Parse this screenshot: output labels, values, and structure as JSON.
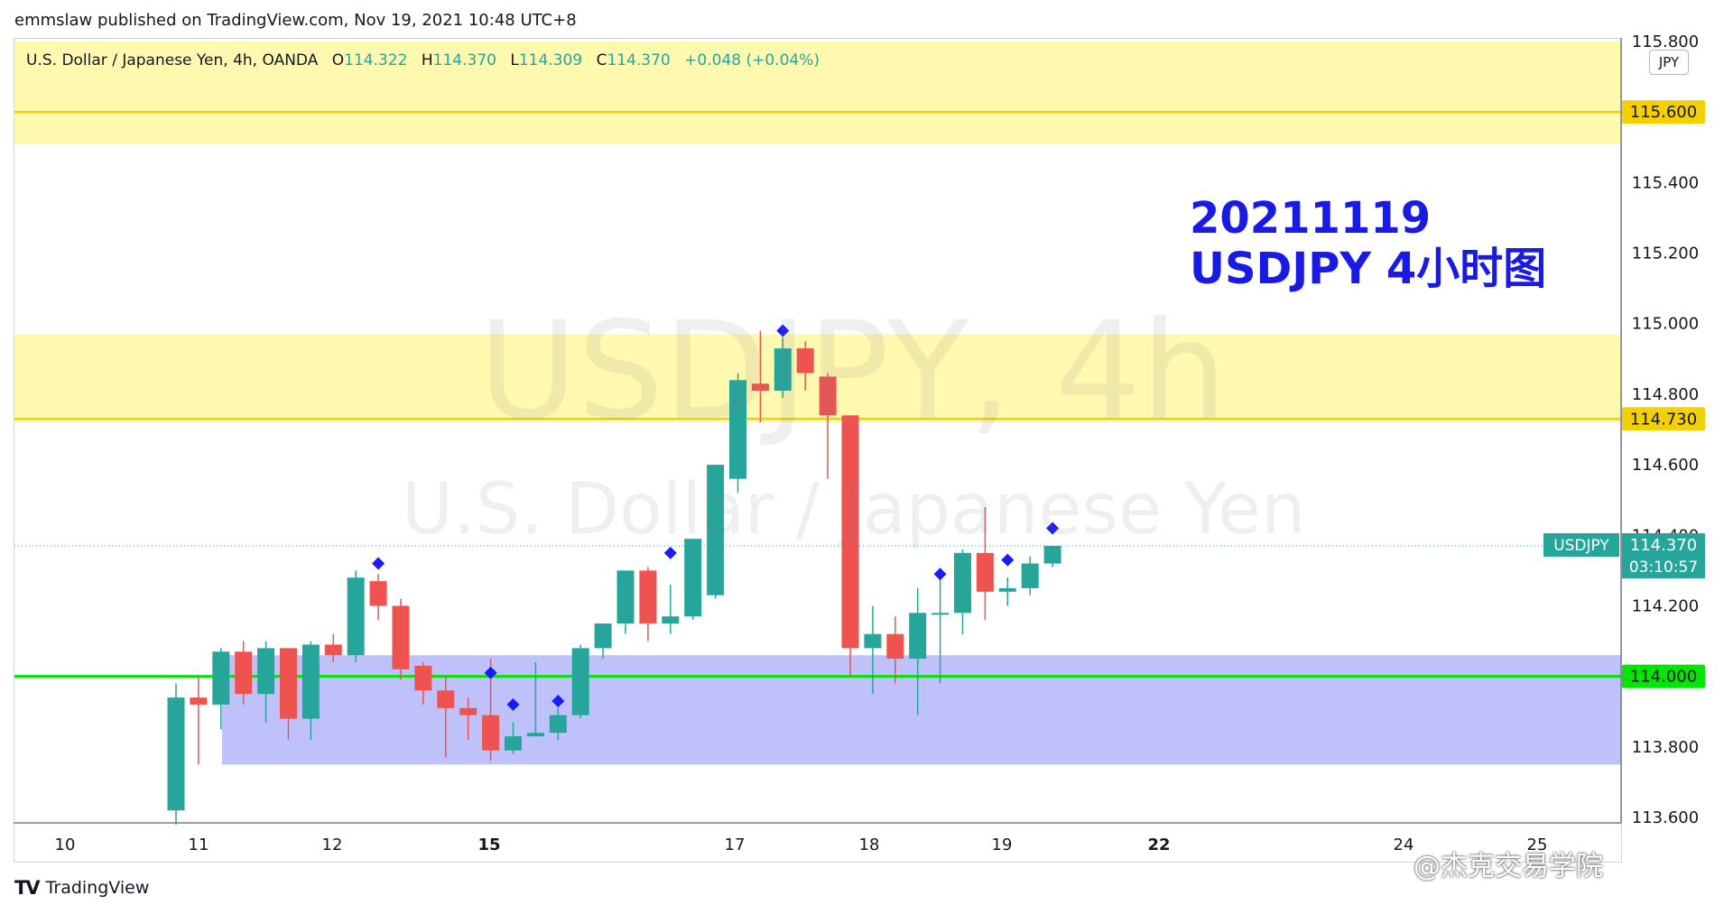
{
  "header": {
    "publish_line": "emmslaw published on TradingView.com, Nov 19, 2021 10:48 UTC+8"
  },
  "legend": {
    "title": "U.S. Dollar / Japanese Yen, 4h, OANDA",
    "open_label": "O",
    "open": "114.322",
    "high_label": "H",
    "high": "114.370",
    "low_label": "L",
    "low": "114.309",
    "close_label": "C",
    "close": "114.370",
    "change": "+0.048 (+0.04%)"
  },
  "watermark": {
    "symbol_line": "USDJPY, 4h",
    "description_line": "U.S. Dollar / Japanese Yen"
  },
  "annotation": {
    "line1": "20211119",
    "line2": "USDJPY 4小时图"
  },
  "price_scale": {
    "unit": "JPY",
    "ticks": [
      "115.800",
      "115.600",
      "115.400",
      "115.200",
      "115.000",
      "114.800",
      "114.730",
      "114.600",
      "114.400",
      "114.370",
      "114.200",
      "114.000",
      "113.800",
      "113.600"
    ]
  },
  "time_scale": {
    "labels": [
      "10",
      "11",
      "12",
      "15",
      "17",
      "18",
      "19",
      "22",
      "24",
      "25"
    ]
  },
  "current_price": {
    "symbol": "USDJPY",
    "price": "114.370",
    "countdown": "03:10:57"
  },
  "footer": {
    "brand": "TradingView",
    "weibo_credit": "@杰克交易学院"
  },
  "colors": {
    "up": "#26a69a",
    "down": "#ef5350",
    "zone_yellow": "#fff9b0",
    "line_yellow": "#f5d000",
    "zone_blue": "#bcbefa",
    "line_green": "#00e600",
    "marker": "#1a1aff",
    "annotation": "#1a1ae6"
  },
  "chart_data": {
    "type": "candlestick",
    "symbol": "USDJPY",
    "timeframe": "4h",
    "ylim": [
      113.6,
      115.85
    ],
    "candles": [
      {
        "x": "11",
        "o": 113.62,
        "h": 113.98,
        "l": 113.58,
        "c": 113.94
      },
      {
        "x": "11",
        "o": 113.94,
        "h": 114.0,
        "l": 113.75,
        "c": 113.92
      },
      {
        "x": "11",
        "o": 113.92,
        "h": 114.08,
        "l": 113.85,
        "c": 114.07
      },
      {
        "x": "12",
        "o": 114.07,
        "h": 114.1,
        "l": 113.92,
        "c": 113.95
      },
      {
        "x": "12",
        "o": 113.95,
        "h": 114.1,
        "l": 113.87,
        "c": 114.08
      },
      {
        "x": "12",
        "o": 114.08,
        "h": 114.08,
        "l": 113.82,
        "c": 113.88
      },
      {
        "x": "12",
        "o": 113.88,
        "h": 114.1,
        "l": 113.82,
        "c": 114.09
      },
      {
        "x": "12",
        "o": 114.09,
        "h": 114.12,
        "l": 114.04,
        "c": 114.06
      },
      {
        "x": "12",
        "o": 114.06,
        "h": 114.3,
        "l": 114.04,
        "c": 114.28
      },
      {
        "x": "12",
        "o": 114.27,
        "h": 114.29,
        "l": 114.16,
        "c": 114.2
      },
      {
        "x": "15",
        "o": 114.2,
        "h": 114.22,
        "l": 113.99,
        "c": 114.02
      },
      {
        "x": "15",
        "o": 114.03,
        "h": 114.04,
        "l": 113.92,
        "c": 113.96
      },
      {
        "x": "15",
        "o": 113.96,
        "h": 114.0,
        "l": 113.77,
        "c": 113.91
      },
      {
        "x": "15",
        "o": 113.91,
        "h": 113.94,
        "l": 113.82,
        "c": 113.89
      },
      {
        "x": "15",
        "o": 113.89,
        "h": 114.05,
        "l": 113.76,
        "c": 113.79
      },
      {
        "x": "15",
        "o": 113.79,
        "h": 113.87,
        "l": 113.78,
        "c": 113.83
      },
      {
        "x": "15",
        "o": 113.83,
        "h": 114.04,
        "l": 113.83,
        "c": 113.84
      },
      {
        "x": "15",
        "o": 113.84,
        "h": 113.91,
        "l": 113.82,
        "c": 113.89
      },
      {
        "x": "15",
        "o": 113.89,
        "h": 114.09,
        "l": 113.88,
        "c": 114.08
      },
      {
        "x": "15",
        "o": 114.08,
        "h": 114.15,
        "l": 114.05,
        "c": 114.15
      },
      {
        "x": "15",
        "o": 114.15,
        "h": 114.3,
        "l": 114.12,
        "c": 114.3
      },
      {
        "x": "15",
        "o": 114.3,
        "h": 114.31,
        "l": 114.1,
        "c": 114.15
      },
      {
        "x": "15",
        "o": 114.15,
        "h": 114.26,
        "l": 114.12,
        "c": 114.17
      },
      {
        "x": "15",
        "o": 114.17,
        "h": 114.39,
        "l": 114.16,
        "c": 114.39
      },
      {
        "x": "17",
        "o": 114.23,
        "h": 114.6,
        "l": 114.22,
        "c": 114.6
      },
      {
        "x": "17",
        "o": 114.56,
        "h": 114.86,
        "l": 114.52,
        "c": 114.84
      },
      {
        "x": "17",
        "o": 114.83,
        "h": 114.98,
        "l": 114.72,
        "c": 114.81
      },
      {
        "x": "17",
        "o": 114.81,
        "h": 114.96,
        "l": 114.79,
        "c": 114.93
      },
      {
        "x": "17",
        "o": 114.93,
        "h": 114.95,
        "l": 114.81,
        "c": 114.86
      },
      {
        "x": "18",
        "o": 114.85,
        "h": 114.86,
        "l": 114.56,
        "c": 114.74
      },
      {
        "x": "18",
        "o": 114.74,
        "h": 114.74,
        "l": 114.0,
        "c": 114.08
      },
      {
        "x": "18",
        "o": 114.08,
        "h": 114.2,
        "l": 113.95,
        "c": 114.12
      },
      {
        "x": "18",
        "o": 114.12,
        "h": 114.17,
        "l": 113.98,
        "c": 114.05
      },
      {
        "x": "18",
        "o": 114.05,
        "h": 114.25,
        "l": 113.89,
        "c": 114.18
      },
      {
        "x": "18",
        "o": 114.18,
        "h": 114.3,
        "l": 113.98,
        "c": 114.18
      },
      {
        "x": "19",
        "o": 114.18,
        "h": 114.36,
        "l": 114.12,
        "c": 114.35
      },
      {
        "x": "19",
        "o": 114.35,
        "h": 114.48,
        "l": 114.16,
        "c": 114.24
      },
      {
        "x": "19",
        "o": 114.24,
        "h": 114.28,
        "l": 114.2,
        "c": 114.25
      },
      {
        "x": "19",
        "o": 114.25,
        "h": 114.34,
        "l": 114.23,
        "c": 114.32
      },
      {
        "x": "19",
        "o": 114.32,
        "h": 114.37,
        "l": 114.31,
        "c": 114.37
      }
    ],
    "markers": [
      {
        "candle": 9,
        "price": 114.32
      },
      {
        "candle": 14,
        "price": 114.01
      },
      {
        "candle": 15,
        "price": 113.92
      },
      {
        "candle": 17,
        "price": 113.93
      },
      {
        "candle": 22,
        "price": 114.35
      },
      {
        "candle": 27,
        "price": 114.98
      },
      {
        "candle": 34,
        "price": 114.29
      },
      {
        "candle": 37,
        "price": 114.33
      },
      {
        "candle": 39,
        "price": 114.42
      }
    ],
    "zones": [
      {
        "name": "upper resistance zone",
        "top": 115.8,
        "bottom": 115.51,
        "level": 115.6
      },
      {
        "name": "middle resistance zone",
        "top": 114.97,
        "bottom": 114.72,
        "level": 114.73
      },
      {
        "name": "support zone",
        "top": 114.06,
        "bottom": 113.75,
        "level": 114.0
      }
    ],
    "last_price": 114.37
  }
}
